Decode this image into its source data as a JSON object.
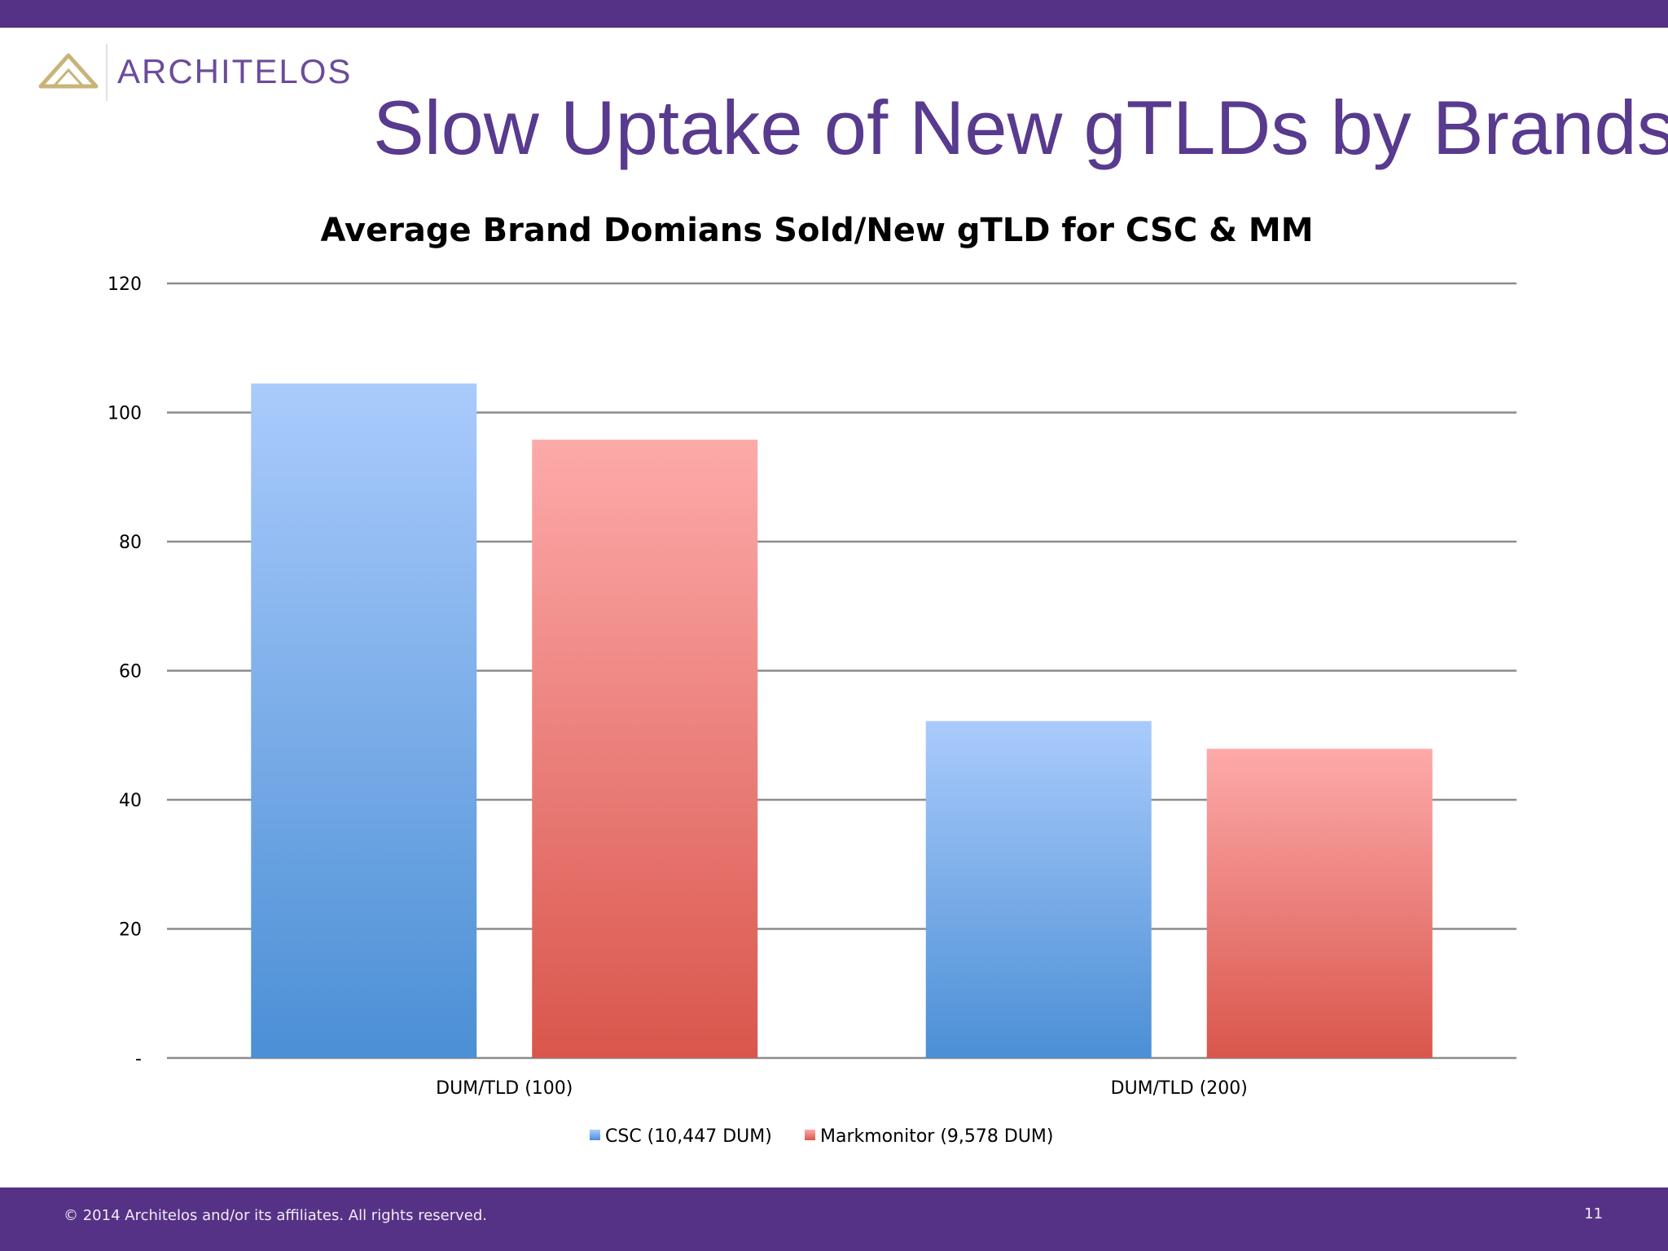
{
  "logo": {
    "text": "ARCHITELOS",
    "mark_color": "#c8b478",
    "text_color": "#6b4c9a"
  },
  "slide": {
    "title": "Slow Uptake of New gTLDs by Brands",
    "footer": "© 2014 Architelos and/or its affiliates. All rights reserved.",
    "page_number": "11",
    "brand_color": "#553285"
  },
  "chart_data": {
    "type": "bar",
    "title": "Average Brand Domians Sold/New gTLD for CSC & MM",
    "xlabel": "",
    "ylabel": "",
    "categories": [
      "DUM/TLD (100)",
      "DUM/TLD (200)"
    ],
    "series": [
      {
        "name": "CSC (10,447 DUM)",
        "values": [
          104.5,
          52.2
        ],
        "color_top": "#aacbfc",
        "color_bottom": "#4b8fd5"
      },
      {
        "name": "Markmonitor (9,578 DUM)",
        "values": [
          95.8,
          47.9
        ],
        "color_top": "#fdaaaa",
        "color_bottom": "#d9564c"
      }
    ],
    "ylim": [
      0,
      120
    ],
    "yticks": [
      {
        "value": 0,
        "label": "-"
      },
      {
        "value": 20,
        "label": "20"
      },
      {
        "value": 40,
        "label": "40"
      },
      {
        "value": 60,
        "label": "60"
      },
      {
        "value": 80,
        "label": "80"
      },
      {
        "value": 100,
        "label": "100"
      },
      {
        "value": 120,
        "label": "120"
      }
    ],
    "grid": true,
    "legend_position": "bottom"
  }
}
